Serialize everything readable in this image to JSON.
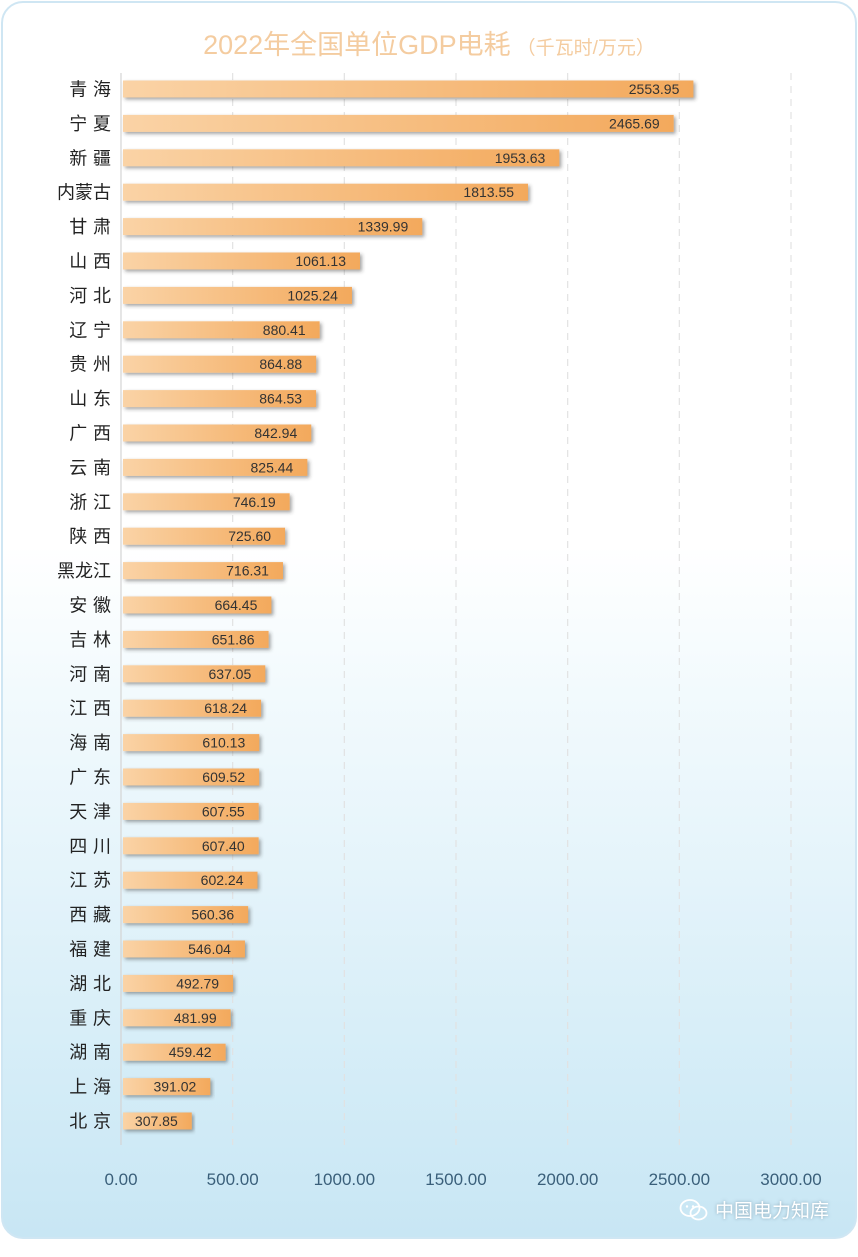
{
  "chart_data": {
    "type": "bar",
    "orientation": "horizontal",
    "title": "2022年全国单位GDP电耗",
    "title_unit": "（千瓦时/万元）",
    "categories": [
      "青 海",
      "宁 夏",
      "新 疆",
      "内蒙古",
      "甘 肃",
      "山 西",
      "河 北",
      "辽 宁",
      "贵 州",
      "山 东",
      "广 西",
      "云 南",
      "浙 江",
      "陕 西",
      "黑龙江",
      "安 徽",
      "吉 林",
      "河 南",
      "江 西",
      "海 南",
      "广 东",
      "天 津",
      "四 川",
      "江 苏",
      "西 藏",
      "福 建",
      "湖 北",
      "重 庆",
      "湖 南",
      "上 海",
      "北 京"
    ],
    "values": [
      2553.95,
      2465.69,
      1953.63,
      1813.55,
      1339.99,
      1061.13,
      1025.24,
      880.41,
      864.88,
      864.53,
      842.94,
      825.44,
      746.19,
      725.6,
      716.31,
      664.45,
      651.86,
      637.05,
      618.24,
      610.13,
      609.52,
      607.55,
      607.4,
      602.24,
      560.36,
      546.04,
      492.79,
      481.99,
      459.42,
      391.02,
      307.85
    ],
    "value_labels": [
      "2553.95",
      "2465.69",
      "1953.63",
      "1813.55",
      "1339.99",
      "1061.13",
      "1025.24",
      "880.41",
      "864.88",
      "864.53",
      "842.94",
      "825.44",
      "746.19",
      "725.60",
      "716.31",
      "664.45",
      "651.86",
      "637.05",
      "618.24",
      "610.13",
      "609.52",
      "607.55",
      "607.40",
      "602.24",
      "560.36",
      "546.04",
      "492.79",
      "481.99",
      "459.42",
      "391.02",
      "307.85"
    ],
    "xticks": [
      "0.00",
      "500.00",
      "1000.00",
      "1500.00",
      "2000.00",
      "2500.00",
      "3000.00"
    ],
    "xlim": [
      0,
      3000
    ],
    "grid": "vertical dashed",
    "legend": "none"
  },
  "watermark": {
    "text": "中国电力知库",
    "icon": "wechat-icon"
  },
  "colors": {
    "title": "#f4cca0",
    "bar_start": "#fad3a6",
    "bar_end": "#f3a95c",
    "grid": "#e2e2e2",
    "tick_text": "#3a5f7a"
  }
}
